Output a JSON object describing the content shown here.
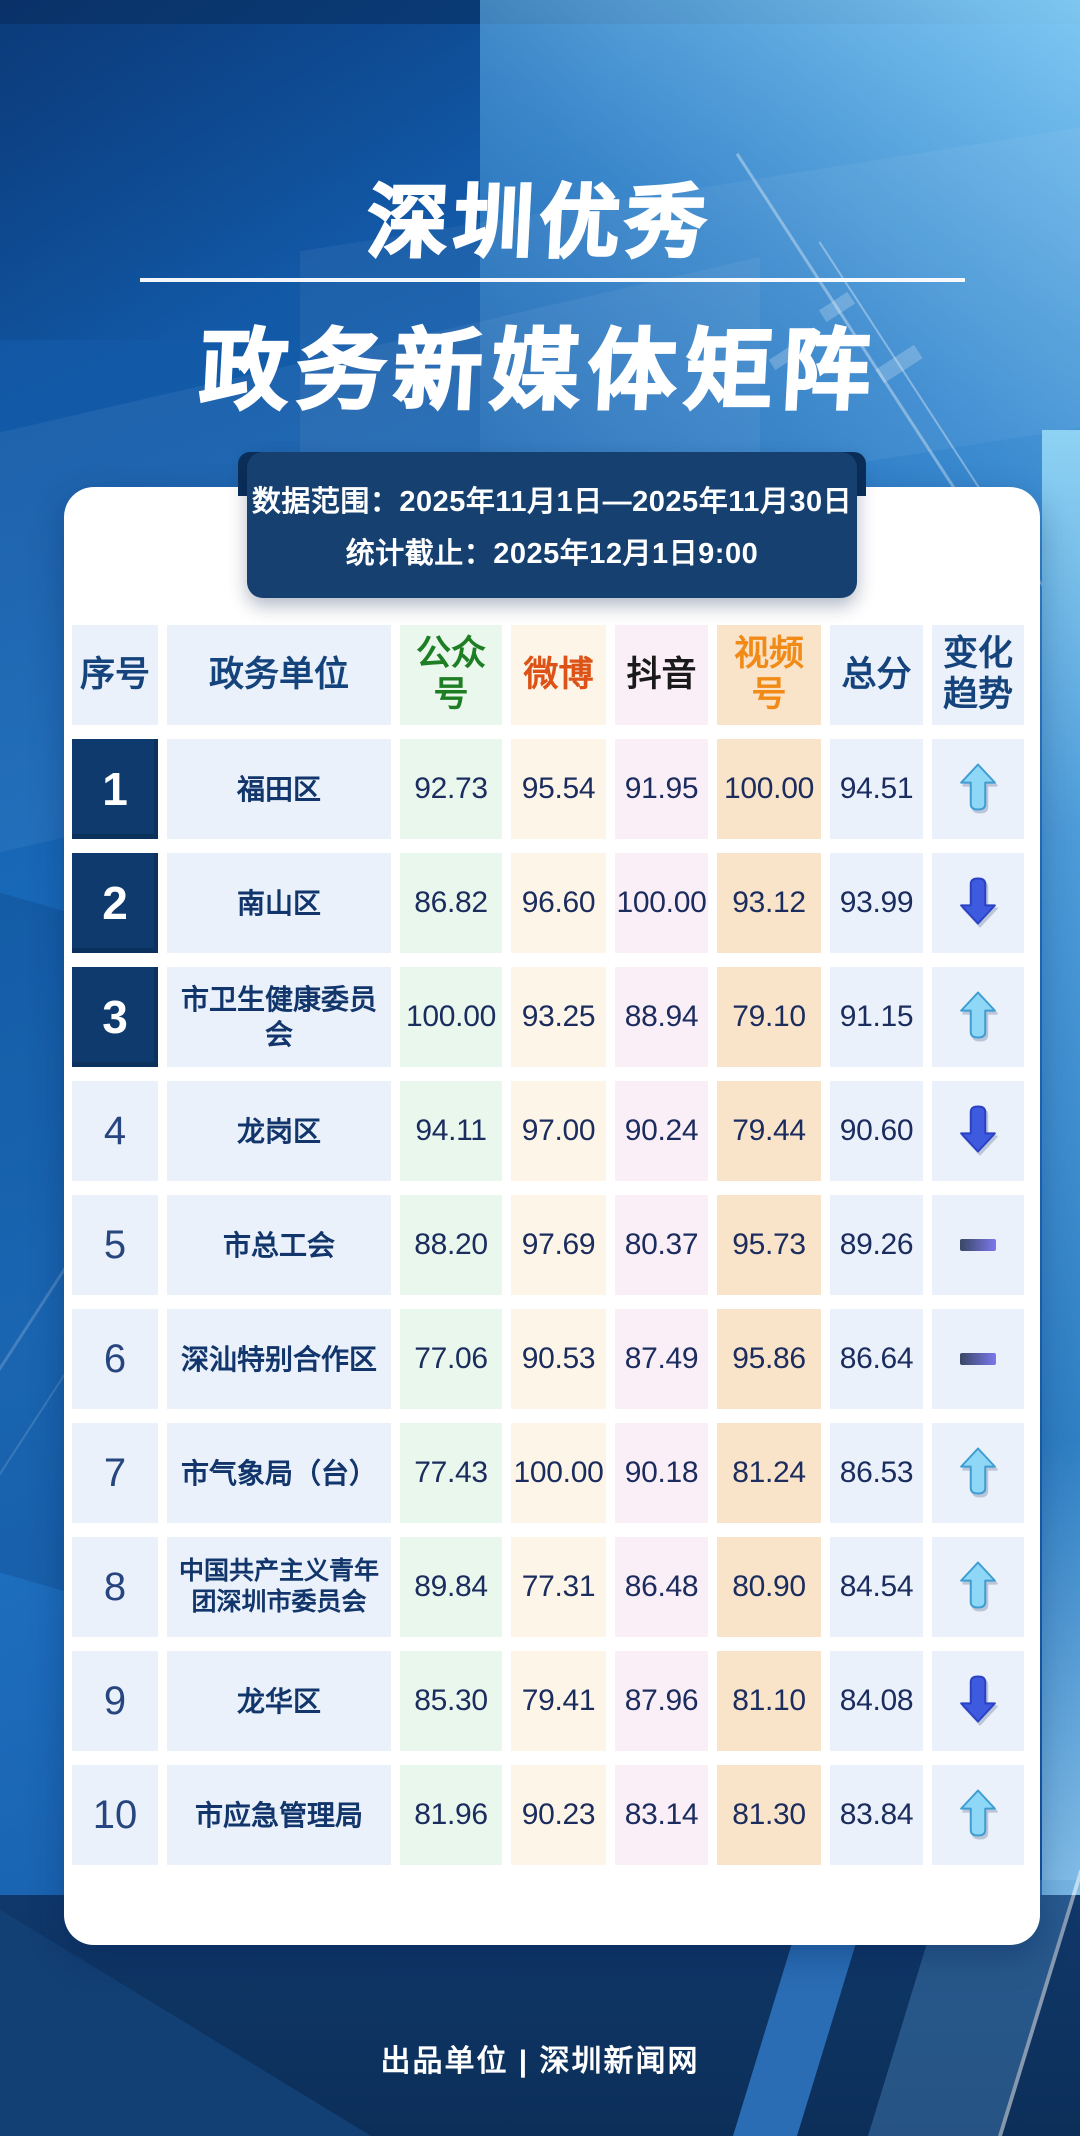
{
  "title": {
    "line1": "深圳优秀",
    "line2": "政务新媒体矩阵"
  },
  "meta": {
    "line1": "数据范围：2025年11月1日—2025年11月30日",
    "line2": "统计截止：2025年12月1日9:00"
  },
  "table": {
    "columns": [
      {
        "key": "rank",
        "label": "序号"
      },
      {
        "key": "unit",
        "label": "政务单位"
      },
      {
        "key": "gzh",
        "label": "公众号"
      },
      {
        "key": "weibo",
        "label": "微博"
      },
      {
        "key": "douyin",
        "label": "抖音"
      },
      {
        "key": "sph",
        "label": "视频号"
      },
      {
        "key": "total",
        "label": "总分"
      },
      {
        "key": "trend",
        "label": "变化趋势"
      }
    ],
    "rows": [
      {
        "rank": "1",
        "unit": "福田区",
        "gzh": "92.73",
        "weibo": "95.54",
        "douyin": "91.95",
        "sph": "100.00",
        "total": "94.51",
        "trend": "up"
      },
      {
        "rank": "2",
        "unit": "南山区",
        "gzh": "86.82",
        "weibo": "96.60",
        "douyin": "100.00",
        "sph": "93.12",
        "total": "93.99",
        "trend": "down"
      },
      {
        "rank": "3",
        "unit": "市卫生健康委员会",
        "gzh": "100.00",
        "weibo": "93.25",
        "douyin": "88.94",
        "sph": "79.10",
        "total": "91.15",
        "trend": "up"
      },
      {
        "rank": "4",
        "unit": "龙岗区",
        "gzh": "94.11",
        "weibo": "97.00",
        "douyin": "90.24",
        "sph": "79.44",
        "total": "90.60",
        "trend": "down"
      },
      {
        "rank": "5",
        "unit": "市总工会",
        "gzh": "88.20",
        "weibo": "97.69",
        "douyin": "80.37",
        "sph": "95.73",
        "total": "89.26",
        "trend": "flat"
      },
      {
        "rank": "6",
        "unit": "深汕特别合作区",
        "gzh": "77.06",
        "weibo": "90.53",
        "douyin": "87.49",
        "sph": "95.86",
        "total": "86.64",
        "trend": "flat"
      },
      {
        "rank": "7",
        "unit": "市气象局（台）",
        "gzh": "77.43",
        "weibo": "100.00",
        "douyin": "90.18",
        "sph": "81.24",
        "total": "86.53",
        "trend": "up"
      },
      {
        "rank": "8",
        "unit": "中国共产主义青年团深圳市委员会",
        "gzh": "89.84",
        "weibo": "77.31",
        "douyin": "86.48",
        "sph": "80.90",
        "total": "84.54",
        "trend": "up"
      },
      {
        "rank": "9",
        "unit": "龙华区",
        "gzh": "85.30",
        "weibo": "79.41",
        "douyin": "87.96",
        "sph": "81.10",
        "total": "84.08",
        "trend": "down"
      },
      {
        "rank": "10",
        "unit": "市应急管理局",
        "gzh": "81.96",
        "weibo": "90.23",
        "douyin": "83.14",
        "sph": "81.30",
        "total": "83.84",
        "trend": "up"
      }
    ]
  },
  "footer": {
    "text": "出品单位 | 深圳新闻网"
  },
  "colors": {
    "header_navy": "#15437c",
    "gzh_green": "#1e7e23",
    "weibo_red": "#dd5317",
    "douyin_black": "#1a1a1a",
    "sph_orange": "#f28a17",
    "cell_blue_bg": "#eaf1fb",
    "cell_green_bg": "#e9f7ec",
    "cell_cream_bg": "#fdf6e8",
    "cell_pink_bg": "#fbeff7",
    "cell_peach_bg": "#f9e4c9",
    "rank_badge_bg": "#0e3a6e",
    "score_text": "#1b2c5e",
    "date_box_bg": "#15406f",
    "up_arrow": "#8ed7f7",
    "down_arrow": "#3e5be0"
  }
}
